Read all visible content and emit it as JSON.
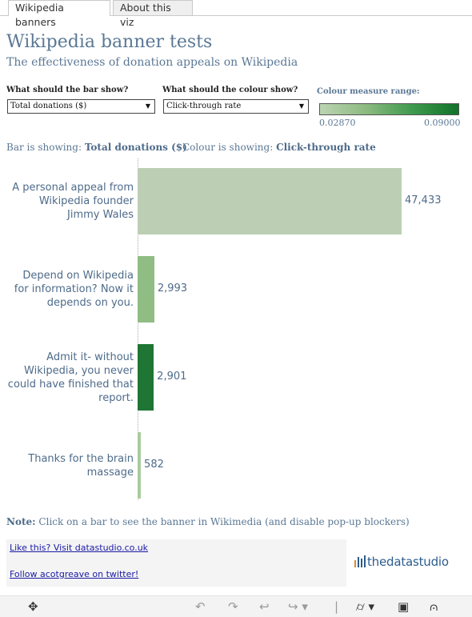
{
  "tabs": [
    {
      "label": "Wikipedia banners",
      "active": true
    },
    {
      "label": "About this viz",
      "active": false
    }
  ],
  "header": {
    "title": "Wikipedia banner tests",
    "subtitle": "The effectiveness of donation appeals on Wikipedia"
  },
  "controls": {
    "bar_label": "What should the bar show?",
    "bar_value": "Total donations ($)",
    "colour_label": "What should the colour show?",
    "colour_value": "Click-through rate",
    "range_label": "Colour measure range:",
    "range_min": "0.02870",
    "range_max": "0.09000",
    "range_colors": [
      "#bcd4b3",
      "#11722a"
    ]
  },
  "status": {
    "bar_prefix": "Bar is showing:",
    "bar_value": "Total donations ($)",
    "colour_prefix": "Colour is showing:",
    "colour_value": "Click-through rate"
  },
  "chart_data": {
    "type": "bar",
    "orientation": "horizontal",
    "categories": [
      "A personal appeal from\nWikipedia founder\nJimmy Wales",
      "Depend on Wikipedia\nfor information? Now it\ndepends on you.",
      "Admit it- without\nWikipedia, you never\ncould have finished that\nreport.",
      "Thanks for the brain\nmassage"
    ],
    "values": [
      47433,
      2993,
      2901,
      582
    ],
    "value_labels": [
      "47,433",
      "2,993",
      "2,901",
      "582"
    ],
    "colors": [
      "#bccfb5",
      "#90bd84",
      "#1e7534",
      "#a9cb9f"
    ],
    "xlim": [
      0,
      47433
    ]
  },
  "note": {
    "prefix": "Note:",
    "text": "Click on a bar to see the banner in Wikimedia (and disable pop-up blockers)"
  },
  "links": {
    "like": "Like this? Visit datastudio.co.uk",
    "follow": "Follow acotgreave on twitter!"
  },
  "brand": {
    "text": "thedatastudio"
  },
  "toolbar": {
    "icons": [
      "move-icon",
      "undo-icon",
      "redo-icon",
      "revert-icon",
      "refresh-icon",
      "download-icon",
      "fullscreen-icon",
      "share-icon"
    ]
  }
}
